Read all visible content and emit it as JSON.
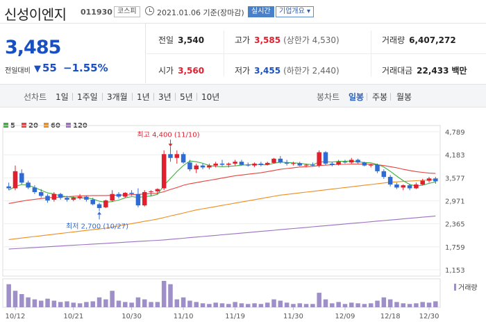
{
  "header": {
    "name": "신성이엔지",
    "code": "011930",
    "market": "코스피",
    "date": "2021.01.06  기준(장마감)",
    "realtime_label": "실시간",
    "company_info_label": "기업개요 ▾"
  },
  "price": {
    "current": "3,485",
    "vs_label": "전일대비",
    "direction_symbol": "▼",
    "change": "55",
    "change_pct": "−1.55%"
  },
  "stats": {
    "prev_close": {
      "label": "전일",
      "value": "3,540"
    },
    "high": {
      "label": "고가",
      "value": "3,585",
      "sub": "(상한가 4,530)"
    },
    "volume": {
      "label": "거래량",
      "value": "6,407,272"
    },
    "open": {
      "label": "시가",
      "value": "3,560"
    },
    "low": {
      "label": "저가",
      "value": "3,455",
      "sub": "(하한가 2,440)"
    },
    "amount": {
      "label": "거래대금",
      "value": "22,433",
      "unit": "백만"
    }
  },
  "tabs": {
    "line_label": "선차트",
    "line_periods": [
      "1일",
      "1주일",
      "3개월",
      "1년",
      "3년",
      "5년",
      "10년"
    ],
    "candle_label": "봉차트",
    "candle_periods": [
      "일봉",
      "주봉",
      "월봉"
    ],
    "candle_active": "일봉"
  },
  "legend": [
    {
      "label": "5",
      "color": "#3db03d"
    },
    {
      "label": "20",
      "color": "#e8413b"
    },
    {
      "label": "60",
      "color": "#f08c1d"
    },
    {
      "label": "120",
      "color": "#9b6fc1"
    }
  ],
  "volume_legend": "거래량",
  "chart_data": {
    "type": "candlestick",
    "y_ticks": [
      "4,789",
      "4,183",
      "3,577",
      "2,971",
      "2,365",
      "1,759",
      "1,153"
    ],
    "y_tick_values": [
      4789,
      4183,
      3577,
      2971,
      2365,
      1759,
      1153
    ],
    "ylim": [
      1153,
      4789
    ],
    "x_labels": [
      "10/12",
      "10/21",
      "10/30",
      "11/10",
      "11/19",
      "11/30",
      "12/09",
      "12/18",
      "12/30"
    ],
    "high_annotation": "최고 4,400 (11/10)",
    "low_annotation": "최저 2,700 (10/27)",
    "up_color": "#e0202f",
    "down_color": "#2f6bd3",
    "candles": [
      [
        3350,
        3450,
        3250,
        3300
      ],
      [
        3300,
        3900,
        3250,
        3750
      ],
      [
        3700,
        3800,
        3400,
        3450
      ],
      [
        3450,
        3500,
        3280,
        3320
      ],
      [
        3320,
        3380,
        3150,
        3200
      ],
      [
        3200,
        3280,
        3050,
        3100
      ],
      [
        3100,
        3150,
        2920,
        2980
      ],
      [
        3000,
        3200,
        2950,
        3150
      ],
      [
        3150,
        3180,
        3000,
        3050
      ],
      [
        3050,
        3100,
        2950,
        3000
      ],
      [
        3000,
        3080,
        2960,
        3050
      ],
      [
        3050,
        3150,
        3000,
        3080
      ],
      [
        3080,
        3100,
        2950,
        3000
      ],
      [
        3000,
        3050,
        2850,
        2880
      ],
      [
        2880,
        2920,
        2700,
        2780
      ],
      [
        2800,
        3000,
        2780,
        2980
      ],
      [
        2980,
        3250,
        2950,
        3150
      ],
      [
        3150,
        3200,
        3030,
        3080
      ],
      [
        3080,
        3200,
        3050,
        3180
      ],
      [
        3180,
        3250,
        3100,
        3150
      ],
      [
        3150,
        3300,
        2800,
        2850
      ],
      [
        2850,
        3250,
        2820,
        3200
      ],
      [
        3200,
        3250,
        3100,
        3220
      ],
      [
        3220,
        3300,
        3150,
        3280
      ],
      [
        3300,
        4300,
        3250,
        4200
      ],
      [
        4200,
        4400,
        4000,
        4100
      ],
      [
        4100,
        4300,
        3950,
        4200
      ],
      [
        4200,
        4250,
        3950,
        3980
      ],
      [
        3980,
        4050,
        3750,
        3800
      ],
      [
        3800,
        3950,
        3700,
        3900
      ],
      [
        3900,
        3950,
        3800,
        3850
      ],
      [
        3850,
        3950,
        3800,
        3900
      ],
      [
        3900,
        4000,
        3850,
        3950
      ],
      [
        3950,
        4050,
        3880,
        3920
      ],
      [
        3920,
        3980,
        3850,
        3950
      ],
      [
        3950,
        4050,
        3900,
        4000
      ],
      [
        4000,
        4050,
        3900,
        3920
      ],
      [
        3920,
        3980,
        3870,
        3900
      ],
      [
        3900,
        3980,
        3860,
        3950
      ],
      [
        3950,
        4000,
        3880,
        3920
      ],
      [
        3920,
        4000,
        3900,
        3970
      ],
      [
        3970,
        4100,
        3950,
        4080
      ],
      [
        4080,
        4150,
        3950,
        3980
      ],
      [
        3980,
        4050,
        3900,
        3950
      ],
      [
        3950,
        4000,
        3900,
        3960
      ],
      [
        3960,
        4000,
        3880,
        3900
      ],
      [
        3900,
        3950,
        3850,
        3920
      ],
      [
        3920,
        3980,
        3880,
        3900
      ],
      [
        3900,
        4300,
        3850,
        4250
      ],
      [
        4250,
        4280,
        3900,
        3950
      ],
      [
        3950,
        4000,
        3880,
        3920
      ],
      [
        3920,
        4050,
        3900,
        4000
      ],
      [
        4000,
        4050,
        3950,
        3980
      ],
      [
        3980,
        4100,
        3950,
        4050
      ],
      [
        4050,
        4080,
        3950,
        3980
      ],
      [
        3980,
        4000,
        3880,
        3900
      ],
      [
        3900,
        3950,
        3850,
        3920
      ],
      [
        3920,
        3950,
        3700,
        3750
      ],
      [
        3750,
        3800,
        3550,
        3600
      ],
      [
        3600,
        3650,
        3350,
        3400
      ],
      [
        3400,
        3450,
        3280,
        3320
      ],
      [
        3320,
        3400,
        3250,
        3380
      ],
      [
        3380,
        3420,
        3250,
        3300
      ],
      [
        3300,
        3450,
        3280,
        3400
      ],
      [
        3400,
        3550,
        3380,
        3500
      ],
      [
        3500,
        3600,
        3450,
        3560
      ],
      [
        3560,
        3600,
        3420,
        3485
      ]
    ],
    "ma5": [
      3250,
      3350,
      3400,
      3380,
      3320,
      3250,
      3180,
      3150,
      3100,
      3080,
      3060,
      3040,
      3050,
      3020,
      2960,
      2930,
      2950,
      2990,
      3050,
      3080,
      3060,
      3080,
      3100,
      3140,
      3380,
      3560,
      3740,
      3900,
      4020,
      4000,
      3960,
      3900,
      3880,
      3870,
      3880,
      3890,
      3910,
      3920,
      3930,
      3920,
      3920,
      3960,
      3990,
      3980,
      3970,
      3960,
      3940,
      3920,
      3990,
      4000,
      3990,
      4010,
      4010,
      4020,
      4000,
      3980,
      3970,
      3930,
      3860,
      3750,
      3620,
      3500,
      3400,
      3360,
      3380,
      3430,
      3470
    ],
    "ma20": [
      2900,
      2930,
      2960,
      2990,
      3010,
      3030,
      3050,
      3060,
      3070,
      3080,
      3090,
      3100,
      3105,
      3110,
      3110,
      3110,
      3115,
      3120,
      3125,
      3130,
      3140,
      3150,
      3160,
      3170,
      3210,
      3270,
      3320,
      3380,
      3420,
      3450,
      3480,
      3510,
      3540,
      3570,
      3600,
      3630,
      3650,
      3670,
      3690,
      3710,
      3740,
      3770,
      3800,
      3820,
      3840,
      3860,
      3870,
      3880,
      3900,
      3910,
      3920,
      3930,
      3930,
      3940,
      3940,
      3940,
      3930,
      3920,
      3900,
      3870,
      3840,
      3800,
      3770,
      3740,
      3720,
      3700,
      3690
    ],
    "ma60": [
      1950,
      1970,
      1990,
      2010,
      2030,
      2050,
      2070,
      2090,
      2110,
      2130,
      2150,
      2170,
      2190,
      2210,
      2230,
      2250,
      2280,
      2310,
      2340,
      2370,
      2400,
      2430,
      2460,
      2490,
      2530,
      2570,
      2610,
      2650,
      2690,
      2730,
      2760,
      2790,
      2820,
      2850,
      2880,
      2910,
      2940,
      2970,
      3000,
      3030,
      3060,
      3090,
      3120,
      3140,
      3160,
      3180,
      3200,
      3220,
      3240,
      3260,
      3280,
      3300,
      3320,
      3340,
      3360,
      3380,
      3400,
      3420,
      3440,
      3460,
      3470,
      3480,
      3490,
      3500,
      3510,
      3520,
      3530
    ],
    "ma120": [
      1700,
      1710,
      1720,
      1730,
      1740,
      1750,
      1760,
      1770,
      1780,
      1790,
      1800,
      1810,
      1820,
      1830,
      1840,
      1850,
      1860,
      1870,
      1880,
      1890,
      1900,
      1910,
      1920,
      1930,
      1940,
      1955,
      1970,
      1985,
      2000,
      2015,
      2030,
      2045,
      2060,
      2075,
      2090,
      2105,
      2120,
      2135,
      2150,
      2165,
      2180,
      2195,
      2210,
      2225,
      2240,
      2255,
      2270,
      2285,
      2300,
      2315,
      2330,
      2345,
      2360,
      2375,
      2390,
      2405,
      2420,
      2435,
      2450,
      2465,
      2480,
      2495,
      2510,
      2525,
      2540,
      2555,
      2570
    ],
    "volume": [
      3.5,
      2.5,
      2.0,
      1.5,
      1.2,
      1.0,
      1.3,
      1.0,
      0.8,
      0.9,
      0.7,
      0.6,
      0.8,
      0.9,
      1.5,
      1.2,
      2.5,
      1.0,
      0.8,
      0.7,
      1.5,
      1.2,
      0.8,
      0.8,
      4.0,
      3.5,
      1.2,
      1.5,
      1.0,
      0.8,
      0.6,
      0.5,
      0.7,
      0.6,
      0.5,
      0.8,
      0.6,
      0.5,
      0.6,
      0.5,
      0.7,
      1.2,
      1.0,
      0.7,
      0.5,
      0.6,
      0.5,
      0.5,
      2.2,
      1.2,
      0.6,
      0.8,
      0.5,
      0.7,
      0.6,
      0.5,
      0.6,
      1.0,
      1.5,
      1.2,
      0.8,
      0.6,
      0.5,
      0.6,
      0.8,
      0.7,
      0.9
    ]
  }
}
